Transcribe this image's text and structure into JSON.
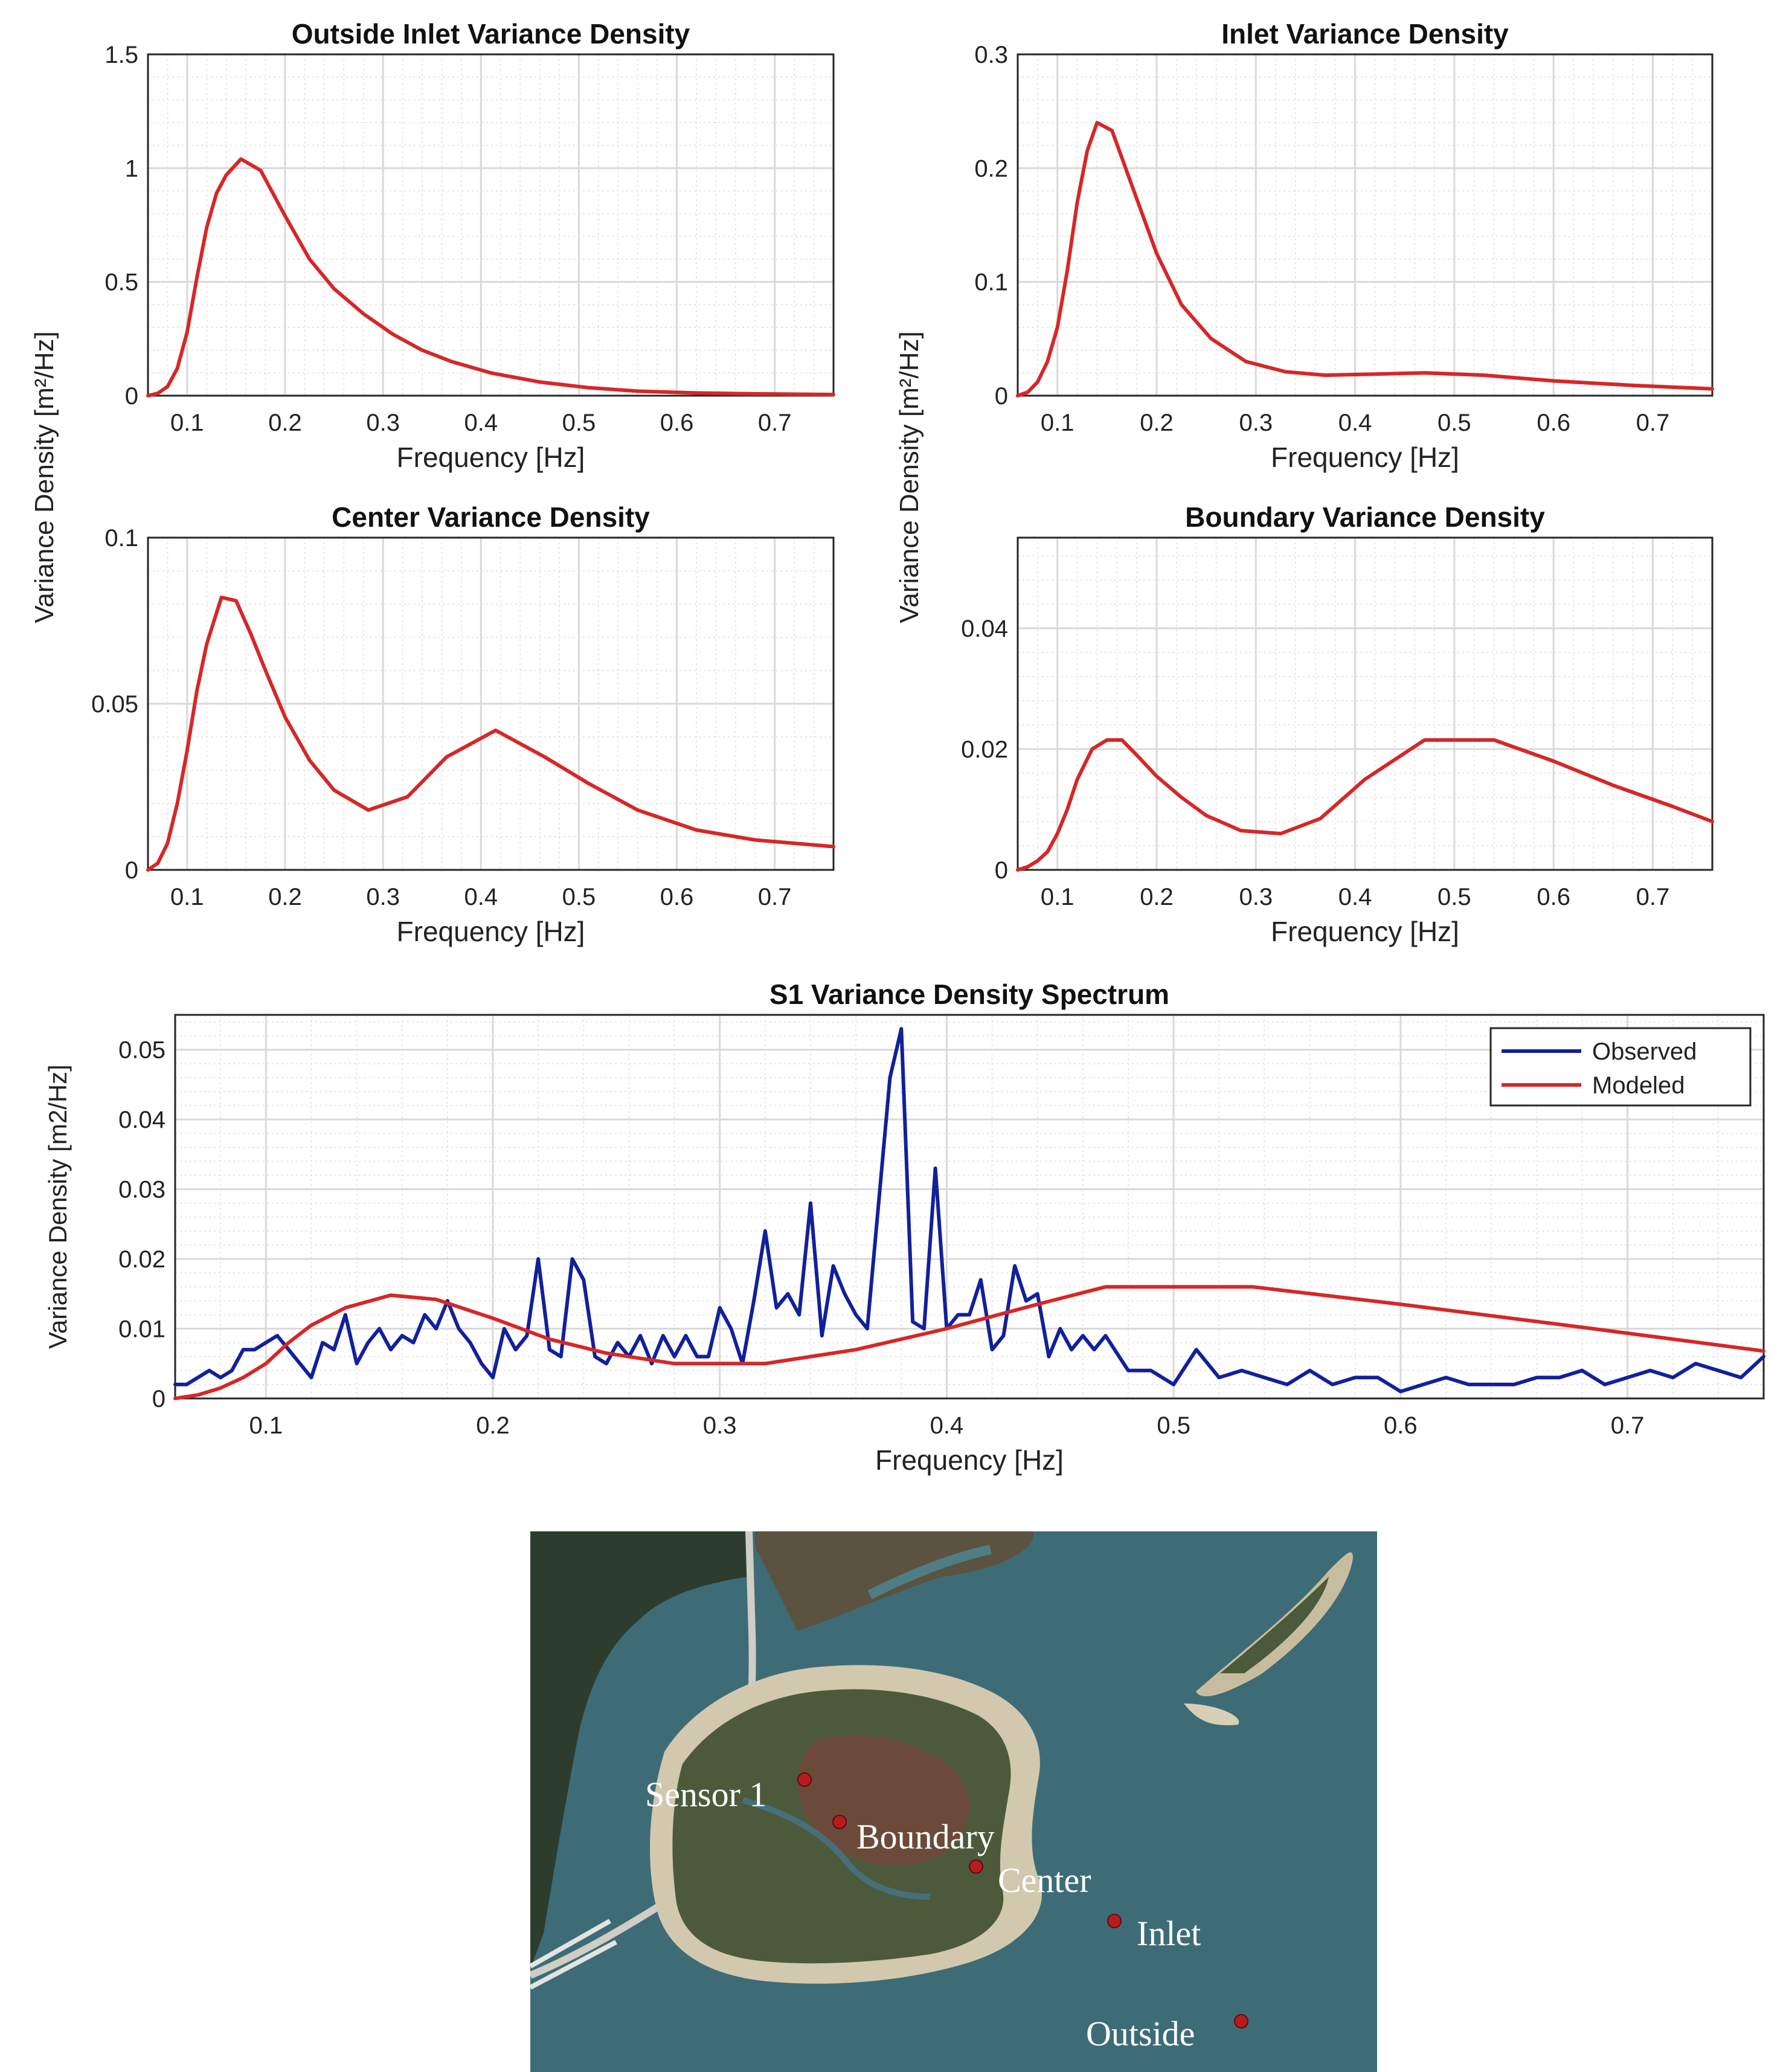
{
  "ylabel_shared": "Variance Density [m²/Hz]",
  "map": {
    "labels": [
      "Sensor 1",
      "Boundary",
      "Center",
      "Inlet",
      "Outside"
    ]
  },
  "colors": {
    "modeled": "#d62728",
    "observed": "#12209a",
    "grid_major": "#d9d9d9",
    "grid_minor": "#e6e6e6",
    "map_water": "#3c6b76",
    "map_sand": "#d9cfb7",
    "map_marsh": "#5b5540"
  },
  "chart_data": [
    {
      "id": "outside",
      "type": "line",
      "title": "Outside Inlet Variance Density",
      "xlabel": "Frequency [Hz]",
      "ylabel": "Variance Density [m²/Hz]",
      "xlim": [
        0.06,
        0.76
      ],
      "ylim": [
        0,
        1.5
      ],
      "xticks": [
        0.1,
        0.2,
        0.3,
        0.4,
        0.5,
        0.6,
        0.7
      ],
      "xtick_labels": [
        "0.1",
        "0.2",
        "0.3",
        "0.4",
        "0.5",
        "0.6",
        "0.7"
      ],
      "yticks": [
        0,
        0.5,
        1,
        1.5
      ],
      "ytick_labels": [
        "0",
        "0.5",
        "1",
        "1.5"
      ],
      "grid": true,
      "series": [
        {
          "name": "Modeled",
          "color": "#d62728",
          "x": [
            0.06,
            0.07,
            0.08,
            0.09,
            0.1,
            0.11,
            0.12,
            0.13,
            0.14,
            0.155,
            0.175,
            0.2,
            0.225,
            0.25,
            0.28,
            0.31,
            0.34,
            0.37,
            0.41,
            0.46,
            0.51,
            0.56,
            0.62,
            0.68,
            0.76
          ],
          "y": [
            0.0,
            0.01,
            0.04,
            0.12,
            0.28,
            0.52,
            0.74,
            0.89,
            0.97,
            1.04,
            0.99,
            0.79,
            0.6,
            0.47,
            0.36,
            0.27,
            0.2,
            0.15,
            0.1,
            0.06,
            0.035,
            0.02,
            0.012,
            0.008,
            0.005
          ]
        }
      ]
    },
    {
      "id": "inlet",
      "type": "line",
      "title": "Inlet Variance Density",
      "xlabel": "Frequency [Hz]",
      "ylabel": "Variance Density [m²/Hz]",
      "xlim": [
        0.06,
        0.76
      ],
      "ylim": [
        0,
        0.3
      ],
      "xticks": [
        0.1,
        0.2,
        0.3,
        0.4,
        0.5,
        0.6,
        0.7
      ],
      "xtick_labels": [
        "0.1",
        "0.2",
        "0.3",
        "0.4",
        "0.5",
        "0.6",
        "0.7"
      ],
      "yticks": [
        0,
        0.1,
        0.2,
        0.3
      ],
      "ytick_labels": [
        "0",
        "0.1",
        "0.2",
        "0.3"
      ],
      "grid": true,
      "series": [
        {
          "name": "Modeled",
          "color": "#d62728",
          "x": [
            0.06,
            0.07,
            0.08,
            0.09,
            0.1,
            0.11,
            0.12,
            0.13,
            0.14,
            0.155,
            0.175,
            0.2,
            0.225,
            0.255,
            0.29,
            0.33,
            0.37,
            0.42,
            0.47,
            0.53,
            0.6,
            0.68,
            0.76
          ],
          "y": [
            0.0,
            0.003,
            0.012,
            0.03,
            0.06,
            0.11,
            0.17,
            0.215,
            0.24,
            0.233,
            0.185,
            0.125,
            0.08,
            0.05,
            0.03,
            0.021,
            0.018,
            0.019,
            0.02,
            0.018,
            0.013,
            0.009,
            0.006
          ]
        }
      ]
    },
    {
      "id": "center",
      "type": "line",
      "title": "Center Variance Density",
      "xlabel": "Frequency [Hz]",
      "ylabel": "Variance Density [m²/Hz]",
      "xlim": [
        0.06,
        0.76
      ],
      "ylim": [
        0,
        0.1
      ],
      "xticks": [
        0.1,
        0.2,
        0.3,
        0.4,
        0.5,
        0.6,
        0.7
      ],
      "xtick_labels": [
        "0.1",
        "0.2",
        "0.3",
        "0.4",
        "0.5",
        "0.6",
        "0.7"
      ],
      "yticks": [
        0,
        0.05,
        0.1
      ],
      "ytick_labels": [
        "0",
        "0.05",
        "0.1"
      ],
      "grid": true,
      "series": [
        {
          "name": "Modeled",
          "color": "#d62728",
          "x": [
            0.06,
            0.07,
            0.08,
            0.09,
            0.1,
            0.11,
            0.12,
            0.135,
            0.15,
            0.165,
            0.18,
            0.2,
            0.225,
            0.25,
            0.285,
            0.325,
            0.365,
            0.415,
            0.465,
            0.51,
            0.56,
            0.62,
            0.68,
            0.76
          ],
          "y": [
            0.0,
            0.002,
            0.008,
            0.02,
            0.036,
            0.054,
            0.068,
            0.082,
            0.081,
            0.071,
            0.06,
            0.046,
            0.033,
            0.024,
            0.018,
            0.022,
            0.034,
            0.042,
            0.034,
            0.026,
            0.018,
            0.012,
            0.009,
            0.007
          ]
        }
      ]
    },
    {
      "id": "boundary",
      "type": "line",
      "title": "Boundary Variance Density",
      "xlabel": "Frequency [Hz]",
      "ylabel": "Variance Density [m²/Hz]",
      "xlim": [
        0.06,
        0.76
      ],
      "ylim": [
        0,
        0.055
      ],
      "xticks": [
        0.1,
        0.2,
        0.3,
        0.4,
        0.5,
        0.6,
        0.7
      ],
      "xtick_labels": [
        "0.1",
        "0.2",
        "0.3",
        "0.4",
        "0.5",
        "0.6",
        "0.7"
      ],
      "yticks": [
        0,
        0.02,
        0.04
      ],
      "ytick_labels": [
        "0",
        "0.02",
        "0.04"
      ],
      "grid": true,
      "series": [
        {
          "name": "Modeled",
          "color": "#d62728",
          "x": [
            0.06,
            0.07,
            0.08,
            0.09,
            0.1,
            0.11,
            0.12,
            0.135,
            0.15,
            0.165,
            0.18,
            0.2,
            0.225,
            0.25,
            0.285,
            0.325,
            0.365,
            0.41,
            0.47,
            0.54,
            0.6,
            0.66,
            0.72,
            0.76
          ],
          "y": [
            0.0,
            0.0005,
            0.0015,
            0.003,
            0.006,
            0.01,
            0.015,
            0.02,
            0.0215,
            0.0215,
            0.019,
            0.0155,
            0.012,
            0.009,
            0.0065,
            0.006,
            0.0085,
            0.015,
            0.0215,
            0.0215,
            0.018,
            0.014,
            0.0105,
            0.008
          ]
        }
      ]
    },
    {
      "id": "s1",
      "type": "line",
      "title": "S1 Variance Density Spectrum",
      "xlabel": "Frequency [Hz]",
      "ylabel": "Variance Density [m2/Hz]",
      "xlim": [
        0.06,
        0.76
      ],
      "ylim": [
        0,
        0.055
      ],
      "xticks": [
        0.1,
        0.2,
        0.3,
        0.4,
        0.5,
        0.6,
        0.7
      ],
      "xtick_labels": [
        "0.1",
        "0.2",
        "0.3",
        "0.4",
        "0.5",
        "0.6",
        "0.7"
      ],
      "yticks": [
        0,
        0.01,
        0.02,
        0.03,
        0.04,
        0.05
      ],
      "ytick_labels": [
        "0",
        "0.01",
        "0.02",
        "0.03",
        "0.04",
        "0.05"
      ],
      "grid": true,
      "legend": "top-right",
      "series": [
        {
          "name": "Observed",
          "color": "#12209a",
          "x": [
            0.06,
            0.065,
            0.07,
            0.075,
            0.08,
            0.085,
            0.09,
            0.095,
            0.1,
            0.105,
            0.11,
            0.115,
            0.12,
            0.125,
            0.13,
            0.135,
            0.14,
            0.145,
            0.15,
            0.155,
            0.16,
            0.165,
            0.17,
            0.175,
            0.18,
            0.185,
            0.19,
            0.195,
            0.2,
            0.205,
            0.21,
            0.215,
            0.22,
            0.225,
            0.23,
            0.235,
            0.24,
            0.245,
            0.25,
            0.255,
            0.26,
            0.265,
            0.27,
            0.275,
            0.28,
            0.285,
            0.29,
            0.295,
            0.3,
            0.305,
            0.31,
            0.315,
            0.32,
            0.325,
            0.33,
            0.335,
            0.34,
            0.345,
            0.35,
            0.355,
            0.36,
            0.365,
            0.37,
            0.375,
            0.38,
            0.385,
            0.39,
            0.395,
            0.4,
            0.405,
            0.41,
            0.415,
            0.42,
            0.425,
            0.43,
            0.435,
            0.44,
            0.445,
            0.45,
            0.455,
            0.46,
            0.465,
            0.47,
            0.48,
            0.49,
            0.5,
            0.51,
            0.52,
            0.53,
            0.54,
            0.55,
            0.56,
            0.57,
            0.58,
            0.59,
            0.6,
            0.61,
            0.62,
            0.63,
            0.64,
            0.65,
            0.66,
            0.67,
            0.68,
            0.69,
            0.7,
            0.71,
            0.72,
            0.73,
            0.74,
            0.75,
            0.76
          ],
          "y": [
            0.002,
            0.002,
            0.003,
            0.004,
            0.003,
            0.004,
            0.007,
            0.007,
            0.008,
            0.009,
            0.007,
            0.005,
            0.003,
            0.008,
            0.007,
            0.012,
            0.005,
            0.008,
            0.01,
            0.007,
            0.009,
            0.008,
            0.012,
            0.01,
            0.014,
            0.01,
            0.008,
            0.005,
            0.003,
            0.01,
            0.007,
            0.009,
            0.02,
            0.007,
            0.006,
            0.02,
            0.017,
            0.006,
            0.005,
            0.008,
            0.006,
            0.009,
            0.005,
            0.009,
            0.006,
            0.009,
            0.006,
            0.006,
            0.013,
            0.01,
            0.005,
            0.014,
            0.024,
            0.013,
            0.015,
            0.012,
            0.028,
            0.009,
            0.019,
            0.015,
            0.012,
            0.01,
            0.028,
            0.046,
            0.053,
            0.011,
            0.01,
            0.033,
            0.01,
            0.012,
            0.012,
            0.017,
            0.007,
            0.009,
            0.019,
            0.014,
            0.015,
            0.006,
            0.01,
            0.007,
            0.009,
            0.007,
            0.009,
            0.004,
            0.004,
            0.002,
            0.007,
            0.003,
            0.004,
            0.003,
            0.002,
            0.004,
            0.002,
            0.003,
            0.003,
            0.001,
            0.002,
            0.003,
            0.002,
            0.002,
            0.002,
            0.003,
            0.003,
            0.004,
            0.002,
            0.003,
            0.004,
            0.003,
            0.005,
            0.004,
            0.003,
            0.006
          ]
        },
        {
          "name": "Modeled",
          "color": "#d62728",
          "x": [
            0.06,
            0.07,
            0.08,
            0.09,
            0.1,
            0.11,
            0.12,
            0.135,
            0.155,
            0.175,
            0.2,
            0.225,
            0.25,
            0.28,
            0.32,
            0.36,
            0.4,
            0.44,
            0.47,
            0.535,
            0.6,
            0.68,
            0.76
          ],
          "y": [
            0.0,
            0.0005,
            0.0015,
            0.003,
            0.005,
            0.008,
            0.0105,
            0.013,
            0.0148,
            0.0142,
            0.0115,
            0.0085,
            0.0065,
            0.005,
            0.005,
            0.007,
            0.01,
            0.0135,
            0.016,
            0.016,
            0.0135,
            0.0102,
            0.0068
          ]
        }
      ]
    }
  ]
}
